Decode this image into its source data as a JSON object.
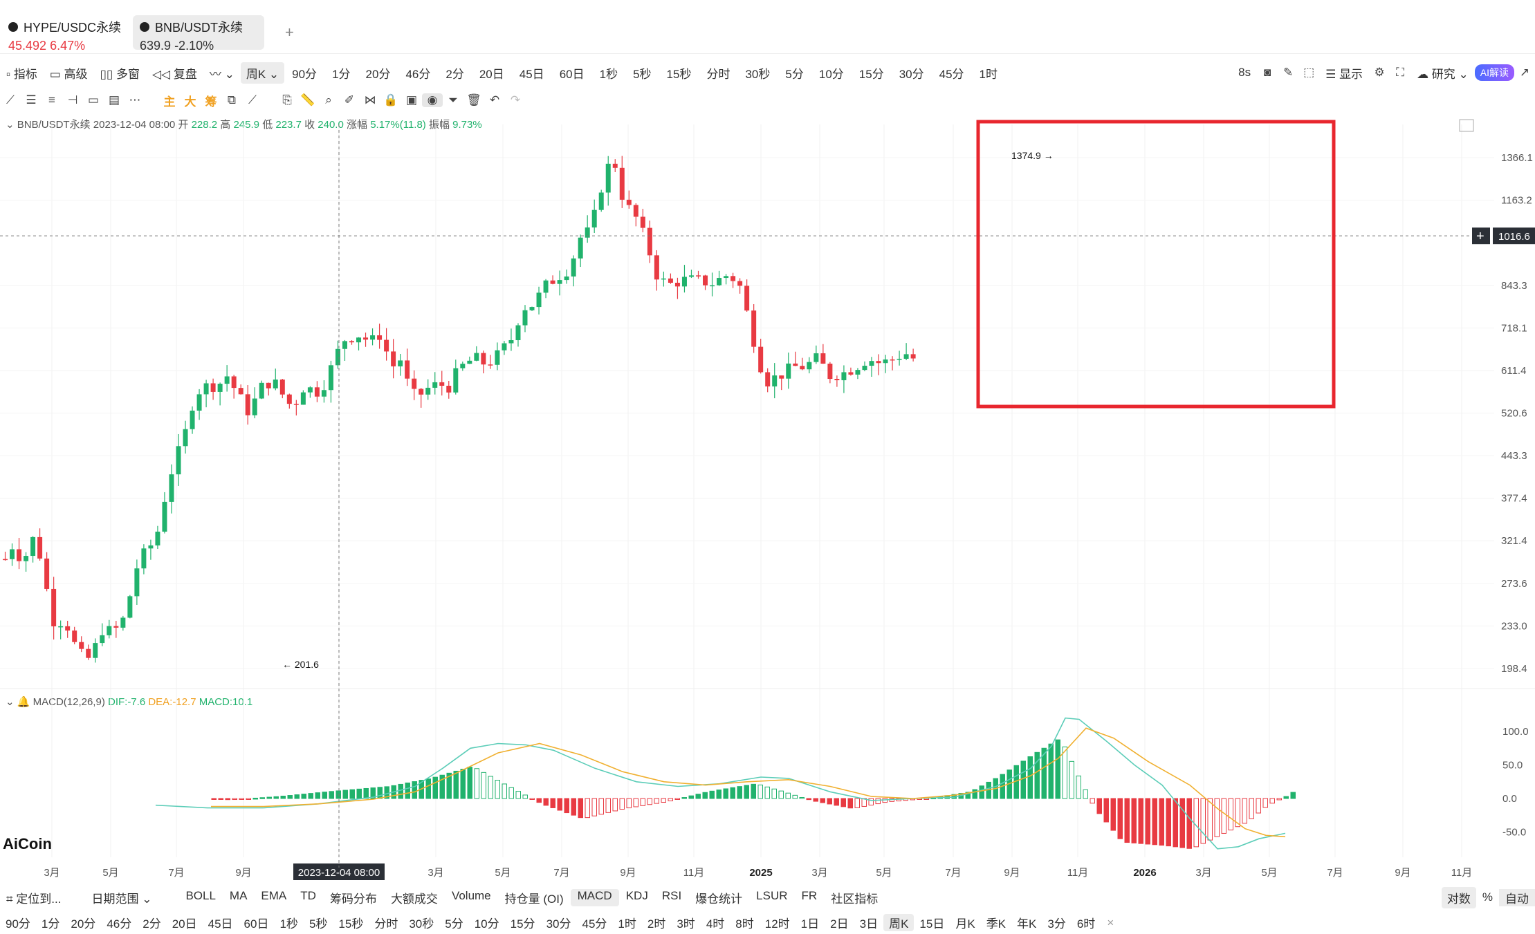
{
  "tabs": [
    {
      "symbol": "HYPE/USDC永续",
      "price": "45.492",
      "change": "6.47%",
      "active": false
    },
    {
      "symbol": "BNB/USDT永续",
      "price": "639.9",
      "change": "-2.10%",
      "active": true
    }
  ],
  "toolbar1": {
    "left": [
      "指标",
      "高级",
      "多窗",
      "复盘"
    ],
    "period_selected": "周K",
    "periods": [
      "90分",
      "1分",
      "20分",
      "46分",
      "2分",
      "20日",
      "45日",
      "60日",
      "1秒",
      "5秒",
      "15秒",
      "分时",
      "30秒",
      "5分",
      "10分",
      "15分",
      "30分",
      "45分",
      "1时"
    ],
    "right": [
      "8s",
      "显示",
      "研究",
      "AI解读"
    ]
  },
  "toolbar2": {
    "orange": [
      "主",
      "大",
      "筹"
    ]
  },
  "info_line": {
    "symbol": "BNB/USDT永续",
    "date": "2023-12-04 08:00",
    "open_label": "开",
    "open": "228.2",
    "high_label": "高",
    "high": "245.9",
    "low_label": "低",
    "low": "223.7",
    "close_label": "收",
    "close": "240.0",
    "chg_label": "涨幅",
    "chg": "5.17%(11.8)",
    "amp_label": "振幅",
    "amp": "9.73%"
  },
  "macd_line": {
    "name": "MACD(12,26,9)",
    "dif": "DIF:-7.6",
    "dea": "DEA:-12.7",
    "macd": "MACD:10.1"
  },
  "chart_data": {
    "type": "candlestick",
    "price_axis": [
      "1366.1",
      "1163.2",
      "1016.6",
      "843.3",
      "718.1",
      "611.4",
      "520.6",
      "443.3",
      "377.4",
      "321.4",
      "273.6",
      "233.0",
      "198.4"
    ],
    "macd_axis": [
      "100.0",
      "50.0",
      "0.0",
      "-50.0"
    ],
    "time_axis": [
      "3月",
      "5月",
      "7月",
      "9月",
      "2023-12-04 08:00",
      "3月",
      "5月",
      "7月",
      "9月",
      "11月",
      "2025",
      "3月",
      "5月",
      "7月",
      "9月",
      "11月",
      "2026",
      "3月",
      "5月",
      "7月",
      "9月",
      "11月"
    ],
    "crosshair_price": "1016.6",
    "max_label": "1374.9",
    "min_label": "201.6",
    "scale": "log"
  },
  "bottom1": {
    "left": [
      "定位到...",
      "日期范围"
    ],
    "indicators": [
      "BOLL",
      "MA",
      "EMA",
      "TD",
      "筹码分布",
      "大额成交",
      "Volume",
      "持仓量 (OI)",
      "MACD",
      "KDJ",
      "RSI",
      "爆仓统计",
      "LSUR",
      "FR",
      "社区指标"
    ],
    "selected": "MACD",
    "right": [
      "对数",
      "%",
      "自动"
    ]
  },
  "bottom2": {
    "periods": [
      "90分",
      "1分",
      "20分",
      "46分",
      "2分",
      "20日",
      "45日",
      "60日",
      "1秒",
      "5秒",
      "15秒",
      "分时",
      "30秒",
      "5分",
      "10分",
      "15分",
      "30分",
      "45分",
      "1时",
      "2时",
      "3时",
      "4时",
      "8时",
      "12时",
      "1日",
      "2日",
      "3日",
      "周K",
      "15日",
      "月K",
      "季K",
      "年K",
      "3分",
      "6时"
    ],
    "selected": "周K"
  },
  "logo": "AiCoin",
  "colors": {
    "up": "#20b26c",
    "down": "#e83a42",
    "highlight": "#e8262e",
    "dif": "#5ccdb8",
    "dea": "#f0b030"
  }
}
